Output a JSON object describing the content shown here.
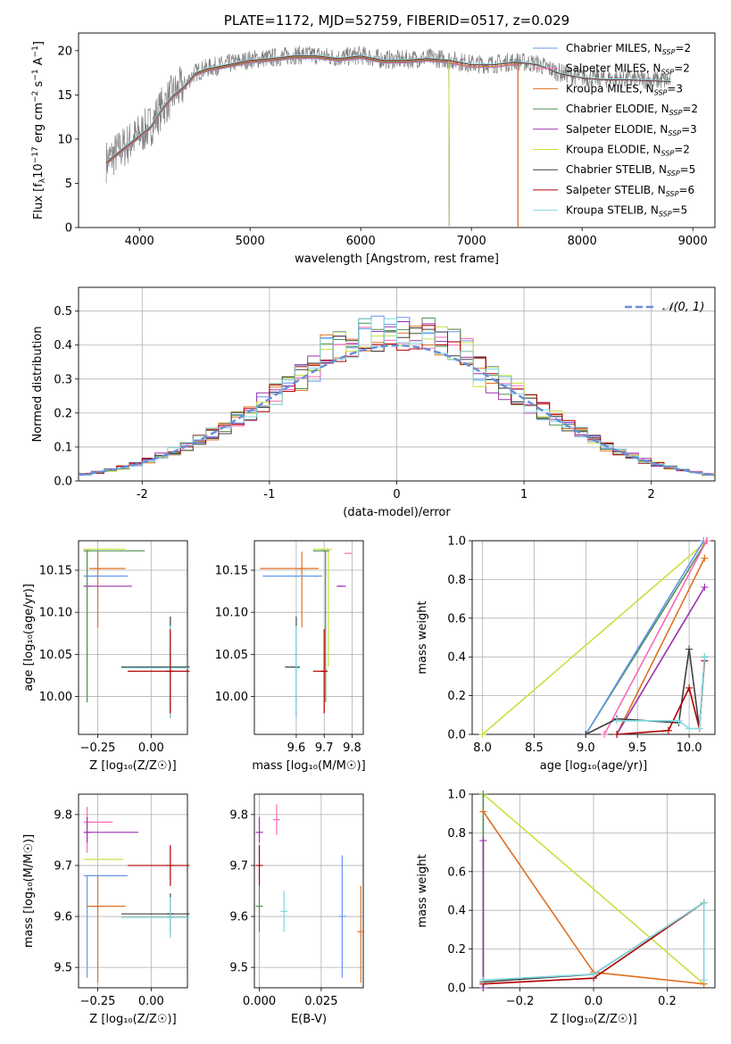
{
  "chart_data": [
    {
      "id": "spectrum",
      "type": "line",
      "title": "PLATE=1172, MJD=52759, FIBERID=0517, z=0.029",
      "xlabel": "wavelength [Angstrom, rest frame]",
      "ylabel": "Flux [f_λ 10^-17 erg cm^-2 s^-1 A^-1]",
      "xlim": [
        3450,
        9200
      ],
      "ylim": [
        0,
        22
      ],
      "xticks": [
        4000,
        5000,
        6000,
        7000,
        8000,
        9000
      ],
      "yticks": [
        0,
        5,
        10,
        15,
        20
      ],
      "grid": false,
      "legend_position": "top-right",
      "legend": [
        {
          "label": "Chabrier MILES, N",
          "sub": "SSP",
          "tail": "=2",
          "color": "#6495ed"
        },
        {
          "label": "Salpeter MILES, N",
          "sub": "SSP",
          "tail": "=2",
          "color": "#ff69b4"
        },
        {
          "label": "Kroupa MILES, N",
          "sub": "SSP",
          "tail": "=3",
          "color": "#e07020"
        },
        {
          "label": "Chabrier ELODIE, N",
          "sub": "SSP",
          "tail": "=2",
          "color": "#4f8f4f"
        },
        {
          "label": "Salpeter ELODIE, N",
          "sub": "SSP",
          "tail": "=3",
          "color": "#9b30b0"
        },
        {
          "label": "Kroupa ELODIE, N",
          "sub": "SSP",
          "tail": "=2",
          "color": "#c8e040"
        },
        {
          "label": "Chabrier STELIB, N",
          "sub": "SSP",
          "tail": "=5",
          "color": "#404040"
        },
        {
          "label": "Salpeter STELIB, N",
          "sub": "SSP",
          "tail": "=6",
          "color": "#b00000"
        },
        {
          "label": "Kroupa STELIB, N",
          "sub": "SSP",
          "tail": "=5",
          "color": "#80d8e0"
        }
      ],
      "data_color": "#808080",
      "data_series": {
        "x": [
          3700,
          3800,
          3900,
          4000,
          4100,
          4200,
          4300,
          4400,
          4500,
          4600,
          4800,
          5000,
          5200,
          5400,
          5600,
          5800,
          6000,
          6200,
          6400,
          6600,
          6800,
          7000,
          7200,
          7400,
          7600,
          7800,
          8000,
          8200,
          8400,
          8600,
          8800
        ],
        "y": [
          7.5,
          8.5,
          9.5,
          10.5,
          11.5,
          13.5,
          15.0,
          16.0,
          17.5,
          18.0,
          18.5,
          19.0,
          19.2,
          19.5,
          19.5,
          19.2,
          19.5,
          19.0,
          19.0,
          19.2,
          19.0,
          18.5,
          18.5,
          18.8,
          18.5,
          17.5,
          17.0,
          16.8,
          16.8,
          16.7,
          16.6
        ]
      },
      "model_endpoints_angstrom": {
        "Kroupa ELODIE": 6800,
        "Salpeter ELODIE": 6800,
        "Chabrier ELODIE": 6800,
        "Kroupa MILES": 7420,
        "Chabrier MILES": 7420,
        "Salpeter MILES": 7420,
        "Kroupa STELIB": 8800,
        "Chabrier STELIB": 8800,
        "Salpeter STELIB": 8800
      }
    },
    {
      "id": "residual_hist",
      "type": "line",
      "xlabel": "(data-model)/error",
      "ylabel": "Normed distribution",
      "xlim": [
        -2.5,
        2.5
      ],
      "ylim": [
        0,
        0.57
      ],
      "xticks": [
        -2,
        -1,
        0,
        1,
        2
      ],
      "yticks": [
        0.0,
        0.1,
        0.2,
        0.3,
        0.4,
        0.5
      ],
      "grid": true,
      "legend_position": "top-right",
      "legend_label": "𝒩(0, 1)",
      "gaussian_color": "#6a8fd8"
    },
    {
      "id": "age_vs_Z",
      "type": "scatter",
      "xlabel": "Z [log₁₀(Z/Z☉)]",
      "ylabel": "age  [log₁₀(age/yr)]",
      "xlim": [
        -0.34,
        0.17
      ],
      "ylim": [
        9.955,
        10.185
      ],
      "xticks": [
        -0.25,
        0.0
      ],
      "xtick_labels": [
        "−0.25",
        "0.00"
      ],
      "yticks": [
        10.0,
        10.05,
        10.1,
        10.15
      ],
      "ytick_labels": [
        "10.00",
        "10.05",
        "10.10",
        "10.15"
      ],
      "grid": true,
      "points": [
        {
          "series": "Kroupa ELODIE",
          "x": -0.3,
          "y": 10.175,
          "xerr": [
            0.0,
            0.18
          ],
          "yerr": [
            0.14,
            0.0
          ]
        },
        {
          "series": "Salpeter ELODIE",
          "x": -0.3,
          "y": 10.131,
          "xerr": [
            0.0,
            0.21
          ],
          "yerr": [
            0.0,
            0.0
          ]
        },
        {
          "series": "Kroupa MILES",
          "x": -0.25,
          "y": 10.152,
          "xerr": [
            0.04,
            0.13
          ],
          "yerr": [
            0.07,
            0.02
          ]
        },
        {
          "series": "Chabrier MILES",
          "x": -0.3,
          "y": 10.143,
          "xerr": [
            0.0,
            0.19
          ],
          "yerr": [
            0.0,
            0.0
          ]
        },
        {
          "series": "Chabrier ELODIE",
          "x": -0.3,
          "y": 10.173,
          "xerr": [
            0.0,
            0.27
          ],
          "yerr": [
            0.18,
            0.0
          ]
        },
        {
          "series": "Chabrier STELIB",
          "x": 0.09,
          "y": 10.035,
          "xerr": [
            0.23,
            0.09
          ],
          "yerr": [
            0.06,
            0.06
          ]
        },
        {
          "series": "Kroupa STELIB",
          "x": 0.09,
          "y": 10.034,
          "xerr": [
            0.23,
            0.09
          ],
          "yerr": [
            0.06,
            0.05
          ]
        },
        {
          "series": "Salpeter STELIB",
          "x": 0.09,
          "y": 10.03,
          "xerr": [
            0.2,
            0.09
          ],
          "yerr": [
            0.05,
            0.05
          ]
        }
      ]
    },
    {
      "id": "age_vs_mass",
      "type": "scatter",
      "xlabel": "mass [log₁₀(M/M☉)]",
      "xlim": [
        9.45,
        9.84
      ],
      "ylim": [
        9.955,
        10.185
      ],
      "xticks": [
        9.6,
        9.7,
        9.8
      ],
      "xtick_labels": [
        "9.6",
        "9.7",
        "9.8"
      ],
      "yticks": [
        10.0,
        10.05,
        10.1,
        10.15
      ],
      "ytick_labels": [
        "10.00",
        "10.05",
        "10.10",
        "10.15"
      ],
      "grid": true,
      "points": [
        {
          "series": "Kroupa ELODIE",
          "x": 9.715,
          "y": 10.175,
          "xerr": [
            0.055,
            0.0
          ],
          "yerr": [
            0.14,
            0.0
          ]
        },
        {
          "series": "Chabrier ELODIE",
          "x": 9.705,
          "y": 10.173,
          "xerr": [
            0.045,
            0.0
          ],
          "yerr": [
            0.18,
            0.0
          ]
        },
        {
          "series": "Kroupa MILES",
          "x": 9.62,
          "y": 10.152,
          "xerr": [
            0.15,
            0.06
          ],
          "yerr": [
            0.07,
            0.02
          ]
        },
        {
          "series": "Chabrier MILES",
          "x": 9.68,
          "y": 10.143,
          "xerr": [
            0.2,
            0.0
          ],
          "yerr": [
            0.0,
            0.0
          ]
        },
        {
          "series": "Salpeter MILES",
          "x": 9.785,
          "y": 10.17,
          "xerr": [
            0.0,
            0.0
          ],
          "yerr": [
            0.0,
            0.0
          ]
        },
        {
          "series": "Salpeter ELODIE",
          "x": 9.765,
          "y": 10.131,
          "xerr": [
            0.02,
            0.0
          ],
          "yerr": [
            0.0,
            0.0
          ]
        },
        {
          "series": "Chabrier STELIB",
          "x": 9.6,
          "y": 10.035,
          "xerr": [
            0.04,
            0.0
          ],
          "yerr": [
            0.06,
            0.06
          ]
        },
        {
          "series": "Kroupa STELIB",
          "x": 9.6,
          "y": 10.034,
          "xerr": [
            0.0,
            0.0
          ],
          "yerr": [
            0.06,
            0.05
          ]
        },
        {
          "series": "Salpeter STELIB",
          "x": 9.7,
          "y": 10.03,
          "xerr": [
            0.04,
            0.0
          ],
          "yerr": [
            0.05,
            0.05
          ]
        }
      ]
    },
    {
      "id": "mass_weight_vs_age",
      "type": "line",
      "xlabel": "age  [log₁₀(age/yr)]",
      "ylabel": "mass weight",
      "xlim": [
        7.9,
        10.25
      ],
      "ylim": [
        0,
        1
      ],
      "xticks": [
        8.0,
        8.5,
        9.0,
        9.5,
        10.0
      ],
      "xtick_labels": [
        "8.0",
        "8.5",
        "9.0",
        "9.5",
        "10.0"
      ],
      "yticks": [
        0.0,
        0.2,
        0.4,
        0.6,
        0.8,
        1.0
      ],
      "ytick_labels": [
        "0.0",
        "0.2",
        "0.4",
        "0.6",
        "0.8",
        "1.0"
      ],
      "grid": true,
      "series": [
        {
          "name": "Kroupa ELODIE",
          "x": [
            8.0,
            10.175
          ],
          "y": [
            0.0,
            1.0
          ]
        },
        {
          "name": "Chabrier ELODIE",
          "x": [
            9.0,
            10.17
          ],
          "y": [
            0.0,
            1.0
          ]
        },
        {
          "name": "Chabrier MILES",
          "x": [
            9.0,
            10.14
          ],
          "y": [
            0.0,
            1.0
          ]
        },
        {
          "name": "Salpeter MILES",
          "x": [
            9.18,
            10.17
          ],
          "y": [
            0.0,
            1.0
          ]
        },
        {
          "name": "Kroupa MILES",
          "x": [
            9.3,
            10.15
          ],
          "y": [
            0.0,
            0.91
          ]
        },
        {
          "name": "Salpeter ELODIE",
          "x": [
            9.3,
            10.15
          ],
          "y": [
            0.0,
            0.76
          ]
        },
        {
          "name": "Chabrier STELIB",
          "x": [
            9.0,
            9.3,
            9.9,
            10.0,
            10.1,
            10.15
          ],
          "y": [
            0.0,
            0.08,
            0.06,
            0.44,
            0.03,
            0.4
          ]
        },
        {
          "name": "Salpeter STELIB",
          "x": [
            9.3,
            9.8,
            10.0,
            10.1,
            10.15
          ],
          "y": [
            0.0,
            0.02,
            0.24,
            0.03,
            0.38
          ]
        },
        {
          "name": "Kroupa STELIB",
          "x": [
            9.3,
            9.9,
            10.0,
            10.1,
            10.15
          ],
          "y": [
            0.07,
            0.07,
            0.03,
            0.03,
            0.4
          ]
        }
      ]
    },
    {
      "id": "mass_vs_Z",
      "type": "scatter",
      "xlabel": "Z [log₁₀(Z/Z☉)]",
      "ylabel": "mass [log₁₀(M/M☉)]",
      "xlim": [
        -0.34,
        0.17
      ],
      "ylim": [
        9.46,
        9.84
      ],
      "xticks": [
        -0.25,
        0.0
      ],
      "xtick_labels": [
        "−0.25",
        "0.00"
      ],
      "yticks": [
        9.5,
        9.6,
        9.7,
        9.8
      ],
      "ytick_labels": [
        "9.5",
        "9.6",
        "9.7",
        "9.8"
      ],
      "grid": true,
      "points": [
        {
          "series": "Salpeter MILES",
          "x": -0.3,
          "y": 9.785,
          "xerr": [
            0.0,
            0.12
          ],
          "yerr": [
            0.06,
            0.03
          ]
        },
        {
          "series": "Salpeter ELODIE",
          "x": -0.3,
          "y": 9.765,
          "xerr": [
            0.0,
            0.24
          ],
          "yerr": [
            0.02,
            0.03
          ]
        },
        {
          "series": "Kroupa ELODIE",
          "x": -0.3,
          "y": 9.712,
          "xerr": [
            0.0,
            0.17
          ],
          "yerr": [
            0.0,
            0.0
          ]
        },
        {
          "series": "Chabrier MILES",
          "x": -0.3,
          "y": 9.68,
          "xerr": [
            0.0,
            0.19
          ],
          "yerr": [
            0.2,
            0.0
          ]
        },
        {
          "series": "Kroupa MILES",
          "x": -0.25,
          "y": 9.62,
          "xerr": [
            0.05,
            0.13
          ],
          "yerr": [
            0.15,
            0.06
          ]
        },
        {
          "series": "Salpeter STELIB",
          "x": 0.09,
          "y": 9.7,
          "xerr": [
            0.2,
            0.09
          ],
          "yerr": [
            0.04,
            0.04
          ]
        },
        {
          "series": "Chabrier STELIB",
          "x": 0.09,
          "y": 9.605,
          "xerr": [
            0.23,
            0.09
          ],
          "yerr": [
            0.04,
            0.04
          ]
        },
        {
          "series": "Kroupa STELIB",
          "x": 0.09,
          "y": 9.598,
          "xerr": [
            0.23,
            0.09
          ],
          "yerr": [
            0.04,
            0.04
          ]
        }
      ]
    },
    {
      "id": "mass_vs_ebv",
      "type": "scatter",
      "xlabel": "E(B-V)",
      "xlim": [
        -0.002,
        0.042
      ],
      "ylim": [
        9.46,
        9.84
      ],
      "xticks": [
        0.0,
        0.025
      ],
      "xtick_labels": [
        "0.000",
        "0.025"
      ],
      "yticks": [
        9.5,
        9.6,
        9.7,
        9.8
      ],
      "ytick_labels": [
        "9.5",
        "9.6",
        "9.7",
        "9.8"
      ],
      "grid": true,
      "points": [
        {
          "series": "Salpeter MILES",
          "x": 0.007,
          "y": 9.79,
          "yerr": [
            0.03,
            0.03
          ]
        },
        {
          "series": "Salpeter ELODIE",
          "x": 0.0,
          "y": 9.765,
          "yerr": [
            0.02,
            0.03
          ]
        },
        {
          "series": "Salpeter STELIB",
          "x": 0.0,
          "y": 9.7,
          "yerr": [
            0.04,
            0.04
          ]
        },
        {
          "series": "Chabrier ELODIE",
          "x": 0.0,
          "y": 9.62,
          "yerr": [
            0.05,
            0.04
          ]
        },
        {
          "series": "Kroupa STELIB",
          "x": 0.01,
          "y": 9.61,
          "yerr": [
            0.04,
            0.04
          ]
        },
        {
          "series": "Chabrier MILES",
          "x": 0.0335,
          "y": 9.6,
          "yerr": [
            0.12,
            0.12
          ]
        },
        {
          "series": "Kroupa MILES",
          "x": 0.041,
          "y": 9.57,
          "yerr": [
            0.1,
            0.09
          ]
        }
      ]
    },
    {
      "id": "mass_weight_vs_Z",
      "type": "line",
      "xlabel": "Z [log₁₀(Z/Z☉)]",
      "ylabel": "mass weight",
      "xlim": [
        -0.33,
        0.33
      ],
      "ylim": [
        0,
        1
      ],
      "xticks": [
        -0.2,
        0.0,
        0.2
      ],
      "xtick_labels": [
        "−0.2",
        "0.0",
        "0.2"
      ],
      "yticks": [
        0.0,
        0.2,
        0.4,
        0.6,
        0.8,
        1.0
      ],
      "ytick_labels": [
        "0.0",
        "0.2",
        "0.4",
        "0.6",
        "0.8",
        "1.0"
      ],
      "grid": true,
      "series": [
        {
          "name": "Kroupa ELODIE",
          "x": [
            -0.3,
            0.3
          ],
          "y": [
            1.0,
            0.02
          ]
        },
        {
          "name": "Chabrier ELODIE",
          "x": [
            -0.3,
            -0.3
          ],
          "y": [
            1.0,
            0.0
          ]
        },
        {
          "name": "Kroupa MILES",
          "x": [
            -0.3,
            0.0,
            0.3
          ],
          "y": [
            0.91,
            0.08,
            0.02
          ]
        },
        {
          "name": "Salpeter ELODIE",
          "x": [
            -0.3,
            -0.3
          ],
          "y": [
            0.76,
            0.0
          ]
        },
        {
          "name": "Salpeter STELIB",
          "x": [
            -0.3,
            0.0,
            0.3
          ],
          "y": [
            0.02,
            0.05,
            0.44
          ]
        },
        {
          "name": "Chabrier STELIB",
          "x": [
            -0.3,
            0.0,
            0.3
          ],
          "y": [
            0.03,
            0.07,
            0.44
          ]
        },
        {
          "name": "Kroupa STELIB",
          "x": [
            -0.3,
            0.0,
            0.3,
            0.3
          ],
          "y": [
            0.04,
            0.07,
            0.44,
            0.04
          ]
        }
      ]
    }
  ]
}
